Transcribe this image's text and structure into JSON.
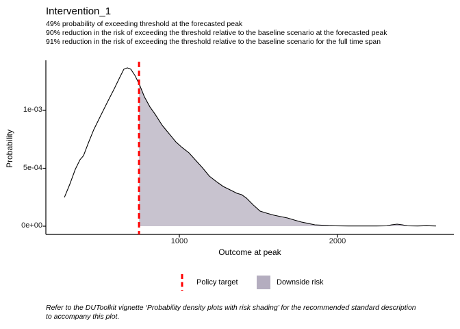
{
  "title": "Intervention_1",
  "subtitle_lines": [
    "49% probability of exceeding threshold at the forecasted peak",
    "90% reduction in the risk of exceeding the threshold relative to the baseline scenario at the forecasted peak",
    "91% reduction in the risk of exceeding the threshold relative to the baseline scenario for the full time span"
  ],
  "caption": "Refer to the DUToolkit vignette ‘Probability density plots with risk shading’ for the recommended standard description to accompany this plot.",
  "axes": {
    "x_label": "Outcome at peak",
    "y_label": "Probability",
    "x_ticks": [
      {
        "value": 1000,
        "label": "1000"
      },
      {
        "value": 2000,
        "label": "2000"
      }
    ],
    "y_ticks": [
      {
        "value": 0,
        "label": "0e+00"
      },
      {
        "value": 0.0005,
        "label": "5e-04"
      },
      {
        "value": 0.001,
        "label": "1e-03"
      }
    ]
  },
  "legend": {
    "items": [
      {
        "label": "Policy target",
        "key": "dashed-red-vline",
        "color": "#ff0000"
      },
      {
        "label": "Downside risk",
        "key": "filled-square",
        "color": "#b4adbf"
      }
    ]
  },
  "colors": {
    "curve": "#000000",
    "policy_line": "#ff0000",
    "risk_fill": "#c8c3cf",
    "legend_key_fill": "#b4adbf",
    "axis": "#000000"
  },
  "chart_data": {
    "type": "area",
    "title": "Intervention_1",
    "xlabel": "Outcome at peak",
    "ylabel": "Probability",
    "xlim": [
      156,
      2736
    ],
    "ylim": [
      0,
      0.001414
    ],
    "legend_position": "bottom",
    "grid": false,
    "policy_target_x": 745,
    "shaded_region": "density where x >= policy_target_x",
    "probability_exceeding_threshold_pct": 49,
    "risk_reduction_at_peak_pct": 90,
    "risk_reduction_full_span_pct": 91,
    "density": {
      "x": [
        273,
        307,
        342,
        372,
        394,
        424,
        459,
        502,
        545,
        589,
        623,
        649,
        671,
        693,
        719,
        749,
        779,
        814,
        848,
        892,
        935,
        978,
        1017,
        1061,
        1104,
        1147,
        1190,
        1234,
        1277,
        1320,
        1364,
        1394,
        1424,
        1468,
        1511,
        1554,
        1597,
        1641,
        1684,
        1727,
        1771,
        1814,
        1857,
        1900,
        1944,
        1987,
        2074,
        2160,
        2247,
        2312,
        2342,
        2377,
        2411,
        2442,
        2506,
        2563,
        2623
      ],
      "y": [
        0.000249,
        0.000361,
        0.000491,
        0.000574,
        0.000609,
        0.000716,
        0.000834,
        0.000953,
        0.001071,
        0.001189,
        0.001284,
        0.001355,
        0.001367,
        0.001355,
        0.001302,
        0.001219,
        0.001118,
        0.00103,
        0.000964,
        0.00087,
        0.000799,
        0.000728,
        0.00068,
        0.000633,
        0.000568,
        0.000503,
        0.000432,
        0.000385,
        0.000343,
        0.000314,
        0.000284,
        0.000272,
        0.000243,
        0.000183,
        0.00013,
        0.000112,
        9.5e-05,
        8.3e-05,
        7.1e-05,
        5.3e-05,
        3.6e-05,
        2.4e-05,
        1.2e-05,
        8e-06,
        5e-06,
        3e-06,
        2e-06,
        2e-06,
        2e-06,
        3e-06,
        1.2e-05,
        1.8e-05,
        1.2e-05,
        3e-06,
        2e-06,
        4e-06,
        2e-06
      ]
    }
  }
}
